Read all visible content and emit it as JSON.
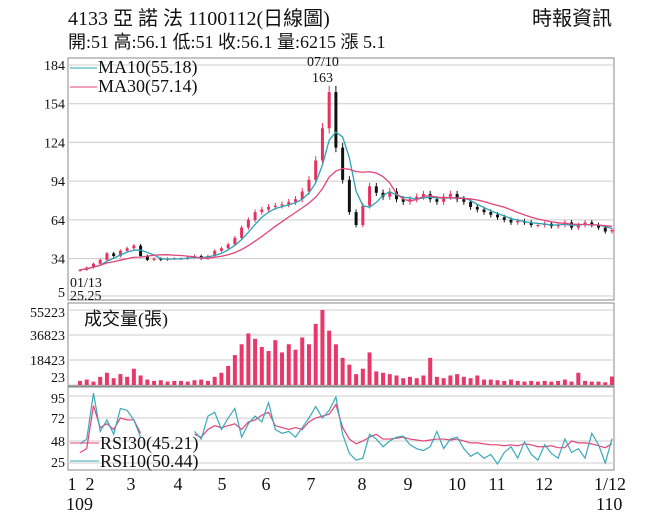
{
  "header": {
    "title": "4133  亞 諾 法 1100112(日線圖)",
    "quote": "開:51 高:56.1 低:51 收:56.1 量:6215 漲 5.1",
    "source": "時報資訊"
  },
  "colors": {
    "up": "#e8305f",
    "down": "#111111",
    "ma10": "#2aa3b5",
    "ma30": "#e0457a",
    "volume": "#e8386a",
    "rsi10": "#3aa9b8",
    "rsi30": "#e0457a",
    "grid": "#cccccc"
  },
  "chart_data": [
    {
      "type": "candlestick",
      "title": "",
      "yticks": [
        "184",
        "154",
        "124",
        "94",
        "64",
        "34",
        "5"
      ],
      "ylim": [
        5,
        184
      ],
      "grid": true,
      "legend": [
        {
          "name": "MA10(55.18)"
        },
        {
          "name": "MA30(57.14)"
        }
      ],
      "annotations": {
        "high_date": "07/10",
        "high_value": "163",
        "low_date": "01/13",
        "low_value": "25.25"
      },
      "close": [
        25.25,
        27,
        30,
        33,
        38,
        36,
        40,
        42,
        44,
        36,
        33,
        34,
        33,
        34,
        34,
        34,
        35,
        36,
        34,
        36,
        40,
        42,
        45,
        50,
        58,
        64,
        70,
        72,
        74,
        75,
        76,
        78,
        80,
        86,
        95,
        110,
        135,
        163,
        120,
        95,
        70,
        60,
        75,
        90,
        85,
        82,
        86,
        80,
        78,
        80,
        82,
        84,
        80,
        78,
        82,
        84,
        80,
        78,
        74,
        72,
        70,
        68,
        66,
        64,
        62,
        63,
        62,
        60,
        60,
        61,
        59,
        60,
        62,
        58,
        60,
        62,
        60,
        58,
        55,
        56.1
      ]
    },
    {
      "type": "bar",
      "label": "成交量(張)",
      "yticks": [
        "55223",
        "36823",
        "18423",
        "23"
      ],
      "ylim": [
        0,
        55223
      ],
      "values": [
        3000,
        4000,
        2500,
        6000,
        9000,
        5000,
        8000,
        6000,
        12000,
        7000,
        4000,
        3000,
        3500,
        2500,
        3000,
        3000,
        2500,
        3500,
        4000,
        3000,
        6000,
        9000,
        14000,
        22000,
        30000,
        38000,
        34000,
        28000,
        25000,
        33000,
        24000,
        30000,
        26000,
        35000,
        30000,
        45000,
        55223,
        40000,
        30000,
        20000,
        15000,
        8000,
        12000,
        24000,
        10000,
        9000,
        8000,
        7000,
        5000,
        6000,
        5000,
        7000,
        20000,
        6000,
        5000,
        7000,
        8000,
        6000,
        5000,
        7000,
        4000,
        4000,
        3500,
        3000,
        4000,
        3000,
        2500,
        3000,
        2500,
        3000,
        2500,
        3000,
        4000,
        2500,
        9000,
        3000,
        2500,
        2500,
        2000,
        6215
      ]
    },
    {
      "type": "line",
      "yticks": [
        "95",
        "72",
        "48",
        "25"
      ],
      "ylim": [
        20,
        100
      ],
      "series": [
        {
          "name": "RSI30(45.21)",
          "values": [
            36,
            40,
            85,
            62,
            66,
            60,
            72,
            70,
            70,
            56,
            null,
            null,
            null,
            null,
            null,
            null,
            null,
            55,
            52,
            60,
            64,
            62,
            64,
            66,
            60,
            68,
            70,
            75,
            78,
            64,
            62,
            60,
            62,
            60,
            68,
            72,
            74,
            76,
            86,
            62,
            50,
            45,
            48,
            52,
            55,
            50,
            50,
            51,
            52,
            50,
            49,
            48,
            49,
            50,
            50,
            49,
            50,
            48,
            46,
            46,
            45,
            44,
            44,
            43,
            44,
            43,
            45,
            44,
            42,
            42,
            43,
            41,
            41,
            48,
            46,
            46,
            45,
            43,
            41,
            45.21
          ]
        },
        {
          "name": "RSI10(50.44)",
          "values": [
            45,
            50,
            98,
            58,
            70,
            55,
            82,
            80,
            70,
            52,
            null,
            null,
            null,
            null,
            null,
            null,
            null,
            58,
            50,
            74,
            78,
            60,
            72,
            82,
            52,
            66,
            74,
            68,
            88,
            60,
            56,
            58,
            52,
            62,
            72,
            84,
            72,
            80,
            94,
            55,
            35,
            28,
            30,
            55,
            50,
            42,
            48,
            52,
            53,
            44,
            40,
            38,
            42,
            58,
            40,
            50,
            52,
            40,
            32,
            36,
            30,
            34,
            24,
            36,
            42,
            30,
            47,
            34,
            28,
            44,
            35,
            30,
            50,
            36,
            40,
            30,
            56,
            44,
            25,
            50.44
          ]
        }
      ]
    }
  ],
  "xaxis": {
    "ticks": [
      "1",
      "2",
      "3",
      "4",
      "5",
      "6",
      "7",
      "8",
      "9",
      "10",
      "11",
      "12",
      "1/12"
    ],
    "year_start": "109",
    "year_end": "110"
  }
}
